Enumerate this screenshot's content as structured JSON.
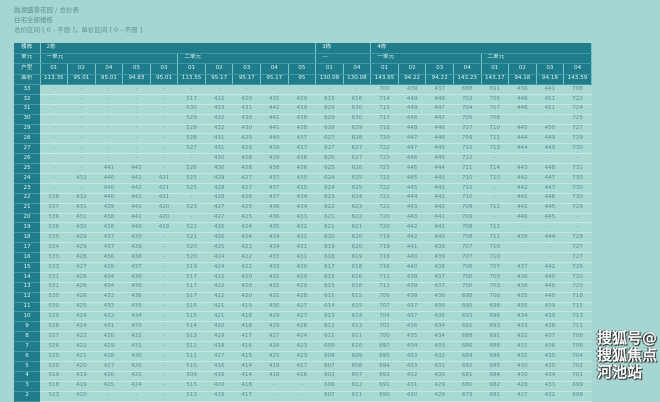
{
  "page": {
    "breadcrumb": "融湖盛景花园 / 总价表",
    "scope": "住宅全部楼栋",
    "filter": "总价区间 [ 0 - 不限 ]，单价区间 [ 0 - 不限 ]"
  },
  "colors": {
    "header_bg": "#1e7c8b",
    "cell_bg": "#a9d9d3",
    "page_bg": "#a6d6d1"
  },
  "table": {
    "row_labels": {
      "building": "楼栋",
      "unit": "单元",
      "type": "户型",
      "area": "面积"
    },
    "buildings": [
      {
        "name": "2栋",
        "units": [
          {
            "name": "一单元",
            "types": [
              "01",
              "02",
              "04",
              "05",
              "03"
            ],
            "areas": [
              "113.35",
              "95.01",
              "95.01",
              "94.83",
              "95.01"
            ]
          },
          {
            "name": "二单元",
            "types": [
              "01",
              "02",
              "03",
              "04",
              "05"
            ],
            "areas": [
              "113.55",
              "95.17",
              "95.17",
              "95.17",
              "95"
            ]
          }
        ]
      },
      {
        "name": "3栋",
        "units": [
          {
            "name": "—",
            "types": [
              "01",
              "04"
            ],
            "areas": [
              "130.08",
              "130.08"
            ]
          }
        ]
      },
      {
        "name": "4栋",
        "units": [
          {
            "name": "一单元",
            "types": [
              "01",
              "02",
              "03",
              "04"
            ],
            "areas": [
              "143.65",
              "94.22",
              "94.22",
              "143.23"
            ]
          },
          {
            "name": "二单元",
            "types": [
              "01",
              "02",
              "03",
              "04"
            ],
            "areas": [
              "143.17",
              "94.18",
              "94.18",
              "143.59"
            ]
          }
        ]
      }
    ],
    "rows": [
      {
        "floor": "33",
        "values": [
          "-",
          "-",
          "-",
          "-",
          "-",
          "-",
          "-",
          "-",
          "-",
          "-",
          "-",
          "-",
          "700",
          "439",
          "437",
          "688",
          "691",
          "436",
          "441",
          "708"
        ]
      },
      {
        "floor": "32",
        "values": [
          "-",
          "-",
          "-",
          "-",
          "-",
          "517",
          "422",
          "420",
          "431",
          "429",
          "615",
          "616",
          "714",
          "449",
          "448",
          "702",
          "705",
          "446",
          "451",
          "722"
        ]
      },
      {
        "floor": "31",
        "values": [
          "-",
          "-",
          "-",
          "-",
          "-",
          "530",
          "433",
          "431",
          "442",
          "439",
          "629",
          "630",
          "715",
          "449",
          "447",
          "704",
          "707",
          "446",
          "451",
          "724"
        ]
      },
      {
        "floor": "30",
        "values": [
          "-",
          "-",
          "-",
          "-",
          "-",
          "529",
          "432",
          "430",
          "441",
          "438",
          "629",
          "630",
          "717",
          "448",
          "447",
          "705",
          "708",
          "-",
          "-",
          "725"
        ]
      },
      {
        "floor": "29",
        "values": [
          "-",
          "-",
          "-",
          "-",
          "-",
          "528",
          "432",
          "430",
          "441",
          "438",
          "628",
          "629",
          "718",
          "448",
          "446",
          "707",
          "710",
          "445",
          "450",
          "727"
        ]
      },
      {
        "floor": "28",
        "values": [
          "-",
          "-",
          "-",
          "-",
          "-",
          "528",
          "431",
          "429",
          "440",
          "437",
          "627",
          "628",
          "720",
          "447",
          "446",
          "709",
          "711",
          "444",
          "449",
          "729"
        ]
      },
      {
        "floor": "27",
        "values": [
          "-",
          "-",
          "-",
          "-",
          "-",
          "527",
          "431",
          "429",
          "439",
          "437",
          "627",
          "627",
          "722",
          "447",
          "445",
          "710",
          "713",
          "444",
          "449",
          "730"
        ]
      },
      {
        "floor": "26",
        "values": [
          "-",
          "-",
          "-",
          "-",
          "-",
          "-",
          "430",
          "428",
          "439",
          "436",
          "626",
          "627",
          "723",
          "446",
          "445",
          "712",
          "-",
          "-",
          "-",
          "-"
        ]
      },
      {
        "floor": "25",
        "values": [
          "-",
          "-",
          "441",
          "443",
          "-",
          "526",
          "430",
          "428",
          "438",
          "436",
          "625",
          "626",
          "723",
          "446",
          "444",
          "711",
          "714",
          "443",
          "448",
          "731"
        ]
      },
      {
        "floor": "24",
        "values": [
          "-",
          "432",
          "440",
          "442",
          "421",
          "525",
          "429",
          "427",
          "437",
          "435",
          "624",
          "625",
          "722",
          "445",
          "443",
          "710",
          "713",
          "442",
          "447",
          "730"
        ]
      },
      {
        "floor": "23",
        "values": [
          "-",
          "-",
          "440",
          "442",
          "421",
          "525",
          "429",
          "427",
          "437",
          "435",
          "624",
          "625",
          "722",
          "445",
          "443",
          "710",
          "-",
          "442",
          "447",
          "730"
        ]
      },
      {
        "floor": "22",
        "values": [
          "538",
          "432",
          "440",
          "442",
          "421",
          "-",
          "428",
          "426",
          "437",
          "434",
          "623",
          "624",
          "721",
          "444",
          "442",
          "710",
          "-",
          "441",
          "446",
          "730"
        ]
      },
      {
        "floor": "21",
        "values": [
          "537",
          "431",
          "439",
          "441",
          "420",
          "523",
          "427",
          "425",
          "436",
          "434",
          "622",
          "623",
          "721",
          "443",
          "442",
          "709",
          "712",
          "441",
          "445",
          "729"
        ]
      },
      {
        "floor": "20",
        "values": [
          "536",
          "431",
          "438",
          "441",
          "420",
          "-",
          "427",
          "425",
          "436",
          "433",
          "621",
          "622",
          "720",
          "443",
          "441",
          "709",
          "-",
          "440",
          "445",
          "-"
        ]
      },
      {
        "floor": "19",
        "values": [
          "536",
          "430",
          "438",
          "440",
          "419",
          "522",
          "426",
          "424",
          "435",
          "432",
          "621",
          "621",
          "720",
          "442",
          "441",
          "708",
          "711",
          "-",
          "-",
          "-"
        ]
      },
      {
        "floor": "18",
        "values": [
          "535",
          "429",
          "437",
          "439",
          "-",
          "521",
          "426",
          "424",
          "434",
          "432",
          "620",
          "620",
          "719",
          "442",
          "440",
          "708",
          "711",
          "439",
          "444",
          "728"
        ]
      },
      {
        "floor": "17",
        "values": [
          "534",
          "429",
          "437",
          "439",
          "-",
          "520",
          "425",
          "423",
          "434",
          "431",
          "619",
          "620",
          "719",
          "441",
          "439",
          "707",
          "710",
          "-",
          "-",
          "727"
        ]
      },
      {
        "floor": "16",
        "values": [
          "533",
          "428",
          "436",
          "438",
          "-",
          "520",
          "424",
          "422",
          "433",
          "431",
          "618",
          "619",
          "718",
          "440",
          "439",
          "707",
          "710",
          "-",
          "-",
          "727"
        ]
      },
      {
        "floor": "15",
        "values": [
          "533",
          "427",
          "435",
          "437",
          "-",
          "519",
          "424",
          "422",
          "433",
          "430",
          "617",
          "618",
          "716",
          "440",
          "438",
          "706",
          "707",
          "437",
          "442",
          "726"
        ]
      },
      {
        "floor": "14",
        "values": [
          "531",
          "426",
          "434",
          "436",
          "-",
          "517",
          "422",
          "420",
          "431",
          "429",
          "615",
          "616",
          "711",
          "439",
          "437",
          "700",
          "703",
          "436",
          "440",
          "720"
        ]
      },
      {
        "floor": "13",
        "values": [
          "531",
          "426",
          "434",
          "436",
          "-",
          "517",
          "422",
          "420",
          "431",
          "429",
          "615",
          "616",
          "711",
          "439",
          "437",
          "700",
          "703",
          "436",
          "440",
          "720"
        ]
      },
      {
        "floor": "12",
        "values": [
          "530",
          "426",
          "433",
          "436",
          "-",
          "517",
          "422",
          "420",
          "431",
          "428",
          "615",
          "615",
          "709",
          "438",
          "436",
          "698",
          "700",
          "435",
          "440",
          "718"
        ]
      },
      {
        "floor": "11",
        "values": [
          "530",
          "425",
          "433",
          "435",
          "-",
          "516",
          "421",
          "419",
          "430",
          "427",
          "614",
          "615",
          "707",
          "437",
          "436",
          "695",
          "698",
          "435",
          "439",
          "715"
        ]
      },
      {
        "floor": "10",
        "values": [
          "529",
          "424",
          "432",
          "434",
          "-",
          "515",
          "421",
          "418",
          "429",
          "427",
          "613",
          "614",
          "704",
          "437",
          "436",
          "693",
          "696",
          "434",
          "439",
          "713"
        ]
      },
      {
        "floor": "9",
        "values": [
          "528",
          "424",
          "431",
          "433",
          "-",
          "514",
          "420",
          "418",
          "429",
          "426",
          "612",
          "613",
          "702",
          "436",
          "434",
          "691",
          "693",
          "433",
          "438",
          "711"
        ]
      },
      {
        "floor": "8",
        "values": [
          "527",
          "423",
          "430",
          "432",
          "-",
          "513",
          "419",
          "417",
          "427",
          "424",
          "611",
          "611",
          "700",
          "435",
          "434",
          "688",
          "691",
          "432",
          "437",
          "708"
        ]
      },
      {
        "floor": "7",
        "values": [
          "526",
          "422",
          "429",
          "431",
          "-",
          "512",
          "418",
          "416",
          "426",
          "423",
          "609",
          "610",
          "697",
          "434",
          "433",
          "686",
          "688",
          "431",
          "436",
          "706"
        ]
      },
      {
        "floor": "6",
        "values": [
          "525",
          "421",
          "428",
          "430",
          "-",
          "511",
          "417",
          "415",
          "425",
          "423",
          "608",
          "609",
          "695",
          "433",
          "432",
          "684",
          "686",
          "431",
          "435",
          "704"
        ]
      },
      {
        "floor": "5",
        "values": [
          "520",
          "420",
          "427",
          "426",
          "-",
          "510",
          "416",
          "414",
          "419",
          "417",
          "607",
          "608",
          "694",
          "433",
          "431",
          "682",
          "685",
          "430",
          "435",
          "702"
        ]
      },
      {
        "floor": "4",
        "values": [
          "519",
          "419",
          "426",
          "425",
          "-",
          "509",
          "416",
          "414",
          "418",
          "416",
          "603",
          "607",
          "692",
          "432",
          "430",
          "681",
          "684",
          "430",
          "434",
          "701"
        ]
      },
      {
        "floor": "3",
        "values": [
          "518",
          "419",
          "425",
          "424",
          "-",
          "515",
          "420",
          "418",
          "-",
          "-",
          "606",
          "612",
          "691",
          "431",
          "429",
          "680",
          "682",
          "428",
          "433",
          "699"
        ]
      },
      {
        "floor": "2",
        "values": [
          "523",
          "420",
          "-",
          "-",
          "-",
          "513",
          "419",
          "417",
          "-",
          "-",
          "607",
          "611",
          "690",
          "430",
          "429",
          "679",
          "681",
          "427",
          "432",
          "698"
        ]
      }
    ]
  },
  "watermark": "搜狐号@搜狐焦点河池站"
}
